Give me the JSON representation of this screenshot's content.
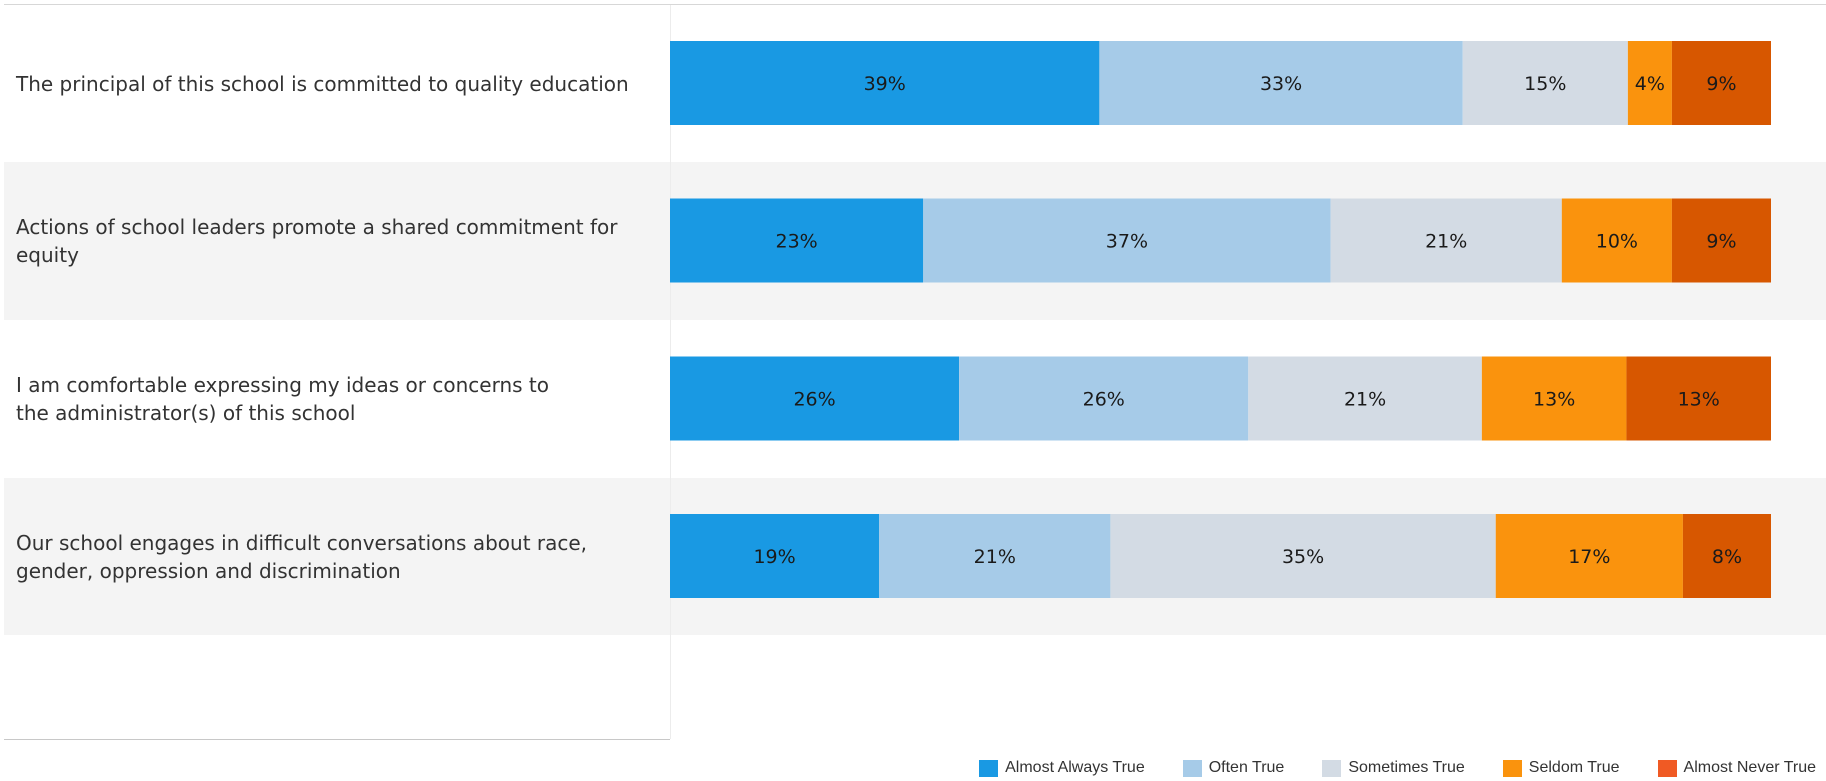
{
  "chart_data": {
    "type": "bar",
    "orientation": "horizontal",
    "stacked": true,
    "normalized_percent": true,
    "categories": [
      "The principal of this school is committed to quality education",
      "Actions of school leaders promote a shared commitment for equity",
      "I am comfortable expressing my ideas or concerns to the administrator(s) of this school",
      "Our school engages in difficult conversations about race, gender, oppression and discrimination"
    ],
    "series": [
      {
        "name": "Almost Always True",
        "values": [
          39,
          23,
          26,
          19
        ],
        "color": "#1999e3"
      },
      {
        "name": "Often True",
        "values": [
          33,
          37,
          26,
          21
        ],
        "color": "#a6cbe8"
      },
      {
        "name": "Sometimes True",
        "values": [
          15,
          21,
          21,
          35
        ],
        "color": "#d3dbe4"
      },
      {
        "name": "Seldom True",
        "values": [
          4,
          10,
          13,
          17
        ],
        "color": "#fa930d"
      },
      {
        "name": "Almost Never True",
        "values": [
          9,
          9,
          13,
          8
        ],
        "color": "#d75700"
      }
    ],
    "data_labels": [
      [
        "39%",
        "33%",
        "15%",
        "4%",
        "9%"
      ],
      [
        "23%",
        "37%",
        "21%",
        "10%",
        "9%"
      ],
      [
        "26%",
        "26%",
        "21%",
        "13%",
        "13%"
      ],
      [
        "19%",
        "21%",
        "35%",
        "17%",
        "8%"
      ]
    ],
    "legend": {
      "placement": "bottom-right",
      "items": [
        {
          "label": "Almost Always True",
          "color": "#1999e3"
        },
        {
          "label": "Often True",
          "color": "#a6cbe8"
        },
        {
          "label": "Sometimes True",
          "color": "#d3dbe4"
        },
        {
          "label": "Seldom True",
          "color": "#fa930d"
        },
        {
          "label": "Almost Never True",
          "color": "#f05a24"
        }
      ]
    },
    "band_colors": [
      "#ffffff",
      "#f4f4f4"
    ],
    "grid": false,
    "title": "",
    "xlabel": "",
    "ylabel": ""
  }
}
